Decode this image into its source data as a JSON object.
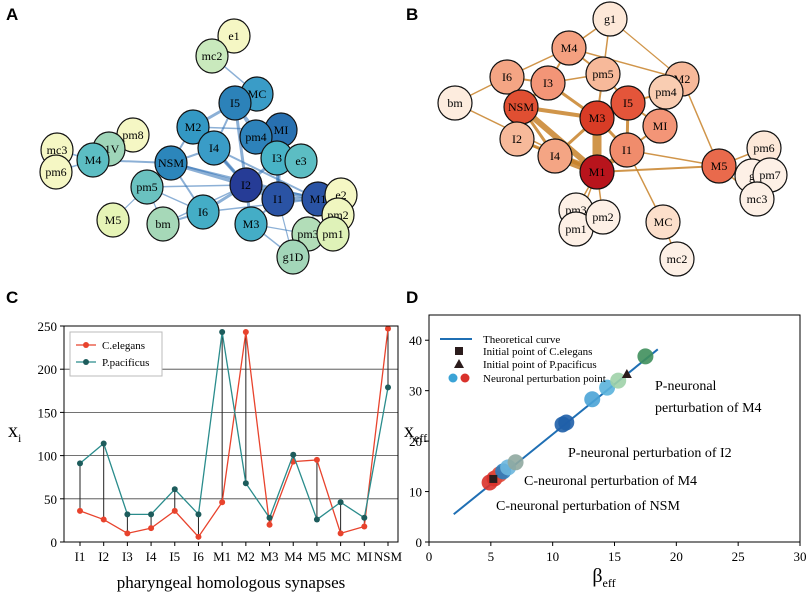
{
  "panels": {
    "a": "A",
    "b": "B",
    "c": "C",
    "d": "D"
  },
  "network_a": {
    "nodes": [
      {
        "id": "e1",
        "color": "#f5f7c4"
      },
      {
        "id": "mc2",
        "color": "#c9e9bd"
      },
      {
        "id": "MC",
        "color": "#3a9cc7"
      },
      {
        "id": "I5",
        "color": "#2c82b9"
      },
      {
        "id": "M2",
        "color": "#3398c4"
      },
      {
        "id": "MI",
        "color": "#2870b0"
      },
      {
        "id": "pm4",
        "color": "#2d82ba"
      },
      {
        "id": "I4",
        "color": "#3a9cc7"
      },
      {
        "id": "NSM",
        "color": "#2c86bb"
      },
      {
        "id": "I3",
        "color": "#48b3c6"
      },
      {
        "id": "e3",
        "color": "#5cbdc3"
      },
      {
        "id": "pm8",
        "color": "#f5f7c4"
      },
      {
        "id": "g1V",
        "color": "#9fd5b9"
      },
      {
        "id": "mc3",
        "color": "#f5f7c4"
      },
      {
        "id": "pm6",
        "color": "#f5f7c4"
      },
      {
        "id": "M4",
        "color": "#5cbdc3"
      },
      {
        "id": "pm5",
        "color": "#6ac2c0"
      },
      {
        "id": "I2",
        "color": "#263c96"
      },
      {
        "id": "I1",
        "color": "#2a53a4"
      },
      {
        "id": "M1",
        "color": "#2a53a4"
      },
      {
        "id": "I6",
        "color": "#44adc6"
      },
      {
        "id": "M5",
        "color": "#e6f4b6"
      },
      {
        "id": "bm",
        "color": "#a6d8b8"
      },
      {
        "id": "M3",
        "color": "#44adc6"
      },
      {
        "id": "e2",
        "color": "#f5f7c4"
      },
      {
        "id": "pm2",
        "color": "#f0f6c0"
      },
      {
        "id": "pm3",
        "color": "#b2ddb8"
      },
      {
        "id": "pm1",
        "color": "#dff2b8"
      },
      {
        "id": "g1D",
        "color": "#a3d6b9"
      }
    ]
  },
  "network_b": {
    "nodes": [
      {
        "id": "g1",
        "color": "#fde8d8"
      },
      {
        "id": "M4",
        "color": "#f4a080"
      },
      {
        "id": "I6",
        "color": "#f4a584"
      },
      {
        "id": "pm5",
        "color": "#f7b99a"
      },
      {
        "id": "I3",
        "color": "#f39577"
      },
      {
        "id": "M2",
        "color": "#f7b99a"
      },
      {
        "id": "pm4",
        "color": "#f9cdb2"
      },
      {
        "id": "bm",
        "color": "#fdecde"
      },
      {
        "id": "NSM",
        "color": "#e04f32"
      },
      {
        "id": "M3",
        "color": "#d93c26"
      },
      {
        "id": "I5",
        "color": "#e4553a"
      },
      {
        "id": "MI",
        "color": "#f39577"
      },
      {
        "id": "I2",
        "color": "#f7b99a"
      },
      {
        "id": "I4",
        "color": "#f4a584"
      },
      {
        "id": "I1",
        "color": "#f08c6c"
      },
      {
        "id": "M1",
        "color": "#b8141c"
      },
      {
        "id": "M5",
        "color": "#e96a4c"
      },
      {
        "id": "pm6",
        "color": "#fde8d8"
      },
      {
        "id": "g",
        "color": "#fdf0e6"
      },
      {
        "id": "pm7",
        "color": "#fdf0e6"
      },
      {
        "id": "mc3",
        "color": "#fdf0e6"
      },
      {
        "id": "pm3",
        "color": "#fdf0e6"
      },
      {
        "id": "pm1",
        "color": "#fdf0e6"
      },
      {
        "id": "pm2",
        "color": "#fdf0e6"
      },
      {
        "id": "MC",
        "color": "#fcdfcb"
      },
      {
        "id": "mc2",
        "color": "#fdf0e6"
      }
    ]
  },
  "chart_data": [
    {
      "type": "line",
      "ylabel": "x",
      "ylabel_sub": "i",
      "xlabel": "pharyngeal homologous synapses",
      "categories": [
        "I1",
        "I2",
        "I3",
        "I4",
        "I5",
        "I6",
        "M1",
        "M2",
        "M3",
        "M4",
        "M5",
        "MC",
        "MI",
        "NSM"
      ],
      "ylim": [
        0,
        250
      ],
      "yticks": [
        0,
        50,
        100,
        150,
        200,
        250
      ],
      "grid": "horizontal",
      "legend_position": "top-left",
      "series": [
        {
          "name": "C.elegans",
          "color": "#e8432d",
          "values": [
            36,
            26,
            10,
            16,
            36,
            6,
            46,
            243,
            20,
            93,
            95,
            10,
            18,
            247
          ]
        },
        {
          "name": "P.pacificus",
          "color": "#2a8c8c",
          "values": [
            91,
            114,
            32,
            32,
            61,
            32,
            243,
            68,
            28,
            101,
            26,
            46,
            28,
            179
          ]
        }
      ]
    },
    {
      "type": "scatter",
      "xlabel": "β",
      "xlabel_sub": "eff",
      "ylabel": "x",
      "ylabel_sub": "eff",
      "xlim": [
        0,
        30
      ],
      "ylim": [
        0,
        45
      ],
      "xticks": [
        0,
        5,
        10,
        15,
        20,
        25,
        30
      ],
      "yticks": [
        0,
        10,
        20,
        30,
        40
      ],
      "legend_position": "top-left",
      "legend": [
        {
          "label": "Theoretical curve",
          "marker": "line",
          "color": "#1f6fb4"
        },
        {
          "label": "Initial point of C.elegans",
          "marker": "square",
          "color": "#2b1c1c"
        },
        {
          "label": "Initial point of P.pacificus",
          "marker": "triangle",
          "color": "#2b1c1c"
        },
        {
          "label": "Neuronal perturbation point",
          "marker": "circles",
          "colors": [
            "#3ba3d6",
            "#d9322b"
          ]
        }
      ],
      "theoretical_curve": {
        "x": [
          2,
          18.5
        ],
        "y": [
          5.5,
          38.2
        ]
      },
      "initial_points": [
        {
          "series": "C.elegans",
          "marker": "square",
          "x": 5.2,
          "y": 12.5
        },
        {
          "series": "P.pacificus",
          "marker": "triangle",
          "x": 16.0,
          "y": 33.3
        }
      ],
      "perturbation_points": [
        {
          "x": 4.9,
          "y": 11.8,
          "color": "#d9322b"
        },
        {
          "x": 5.3,
          "y": 12.6,
          "color": "#d9322b"
        },
        {
          "x": 5.7,
          "y": 13.4,
          "color": "#e0493a"
        },
        {
          "x": 6.0,
          "y": 14.0,
          "color": "#2a7fc0"
        },
        {
          "x": 6.4,
          "y": 14.8,
          "color": "#6cb6dd"
        },
        {
          "x": 7.0,
          "y": 15.8,
          "color": "#8fa9a0"
        },
        {
          "x": 10.8,
          "y": 23.3,
          "color": "#1f5fa8"
        },
        {
          "x": 11.1,
          "y": 23.7,
          "color": "#1f5fa8"
        },
        {
          "x": 13.2,
          "y": 28.3,
          "color": "#4aa3d6"
        },
        {
          "x": 14.4,
          "y": 30.6,
          "color": "#5ab3dc"
        },
        {
          "x": 15.3,
          "y": 32.0,
          "color": "#9fd2a8"
        },
        {
          "x": 17.5,
          "y": 36.8,
          "color": "#3f8f5c"
        }
      ],
      "annotations": [
        {
          "lines": [
            "P-neuronal",
            "perturbation of M4"
          ]
        },
        {
          "lines": [
            "P-neuronal perturbation of I2"
          ]
        },
        {
          "lines": [
            "C-neuronal perturbation of M4"
          ]
        },
        {
          "lines": [
            "C-neuronal perturbation of NSM"
          ]
        }
      ]
    }
  ]
}
